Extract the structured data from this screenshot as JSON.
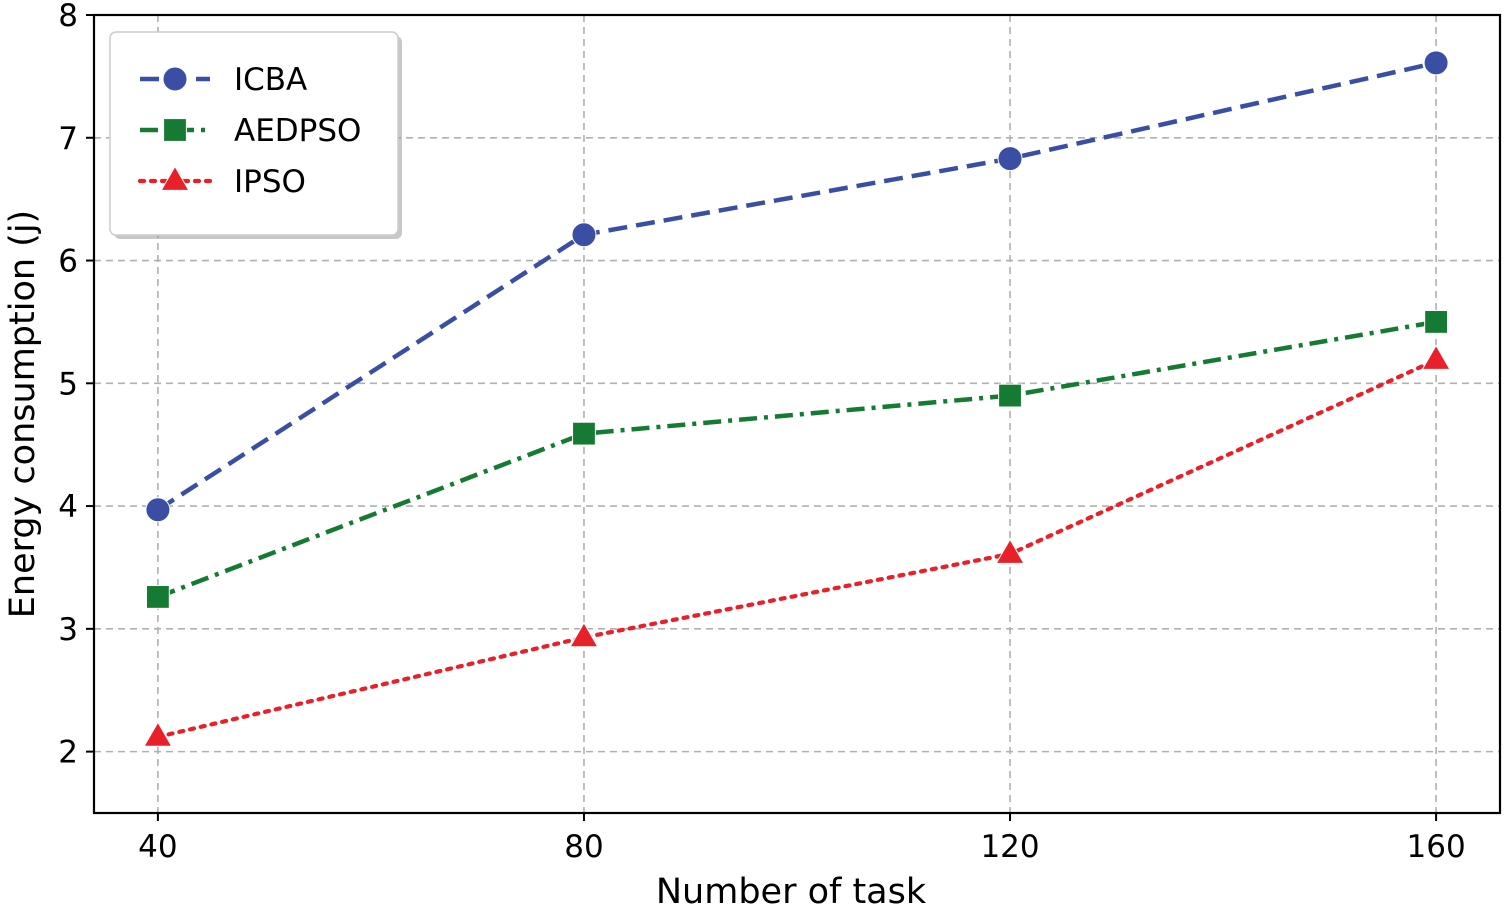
{
  "chart_data": {
    "type": "line",
    "title": "",
    "xlabel": "Number of task",
    "ylabel": "Energy consumption (j)",
    "x": [
      40,
      80,
      120,
      160
    ],
    "xticks": [
      "40",
      "80",
      "120",
      "160"
    ],
    "xlim": [
      34,
      166
    ],
    "ylim": [
      1.5,
      8
    ],
    "yticks": [
      "2",
      "3",
      "4",
      "5",
      "6",
      "7",
      "8"
    ],
    "grid": true,
    "legend_position": "upper-left",
    "series": [
      {
        "name": "ICBA",
        "values": [
          3.97,
          6.21,
          6.83,
          7.61
        ],
        "color": "#3a4fa3",
        "line_style": "dashed",
        "marker": "circle"
      },
      {
        "name": "AEDPSO",
        "values": [
          3.26,
          4.59,
          4.9,
          5.5
        ],
        "color": "#157a32",
        "line_style": "dash-dot",
        "marker": "square"
      },
      {
        "name": "IPSO",
        "values": [
          2.12,
          2.93,
          3.61,
          5.19
        ],
        "color": "#e8202a",
        "line_style": "dotted",
        "marker": "triangle"
      }
    ]
  }
}
